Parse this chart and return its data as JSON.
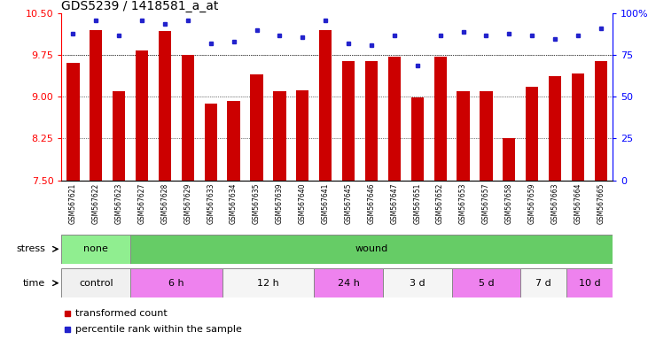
{
  "title": "GDS5239 / 1418581_a_at",
  "samples": [
    "GSM567621",
    "GSM567622",
    "GSM567623",
    "GSM567627",
    "GSM567628",
    "GSM567629",
    "GSM567633",
    "GSM567634",
    "GSM567635",
    "GSM567639",
    "GSM567640",
    "GSM567641",
    "GSM567645",
    "GSM567646",
    "GSM567647",
    "GSM567651",
    "GSM567652",
    "GSM567653",
    "GSM567657",
    "GSM567658",
    "GSM567659",
    "GSM567663",
    "GSM567664",
    "GSM567665"
  ],
  "bar_values": [
    9.62,
    10.2,
    9.1,
    9.83,
    10.18,
    9.75,
    8.88,
    8.93,
    9.4,
    9.1,
    9.12,
    10.2,
    9.65,
    9.65,
    9.73,
    8.99,
    9.73,
    9.1,
    9.1,
    8.25,
    9.18,
    9.37,
    9.42,
    9.65
  ],
  "dot_values": [
    88,
    96,
    87,
    96,
    94,
    96,
    82,
    83,
    90,
    87,
    86,
    96,
    82,
    81,
    87,
    69,
    87,
    89,
    87,
    88,
    87,
    85,
    87,
    91
  ],
  "ylim_left": [
    7.5,
    10.5
  ],
  "ylim_right": [
    0,
    100
  ],
  "yticks_left": [
    7.5,
    8.25,
    9.0,
    9.75,
    10.5
  ],
  "yticks_right": [
    0,
    25,
    50,
    75,
    100
  ],
  "bar_color": "#CC0000",
  "dot_color": "#2222CC",
  "stress_groups": [
    {
      "label": "none",
      "start": 0,
      "end": 3,
      "color": "#90EE90"
    },
    {
      "label": "wound",
      "start": 3,
      "end": 24,
      "color": "#66CC66"
    }
  ],
  "time_groups": [
    {
      "label": "control",
      "start": 0,
      "end": 3,
      "color": "#f0f0f0"
    },
    {
      "label": "6 h",
      "start": 3,
      "end": 7,
      "color": "#EE82EE"
    },
    {
      "label": "12 h",
      "start": 7,
      "end": 11,
      "color": "#f5f5f5"
    },
    {
      "label": "24 h",
      "start": 11,
      "end": 14,
      "color": "#EE82EE"
    },
    {
      "label": "3 d",
      "start": 14,
      "end": 17,
      "color": "#f5f5f5"
    },
    {
      "label": "5 d",
      "start": 17,
      "end": 20,
      "color": "#EE82EE"
    },
    {
      "label": "7 d",
      "start": 20,
      "end": 22,
      "color": "#f5f5f5"
    },
    {
      "label": "10 d",
      "start": 22,
      "end": 24,
      "color": "#EE82EE"
    }
  ],
  "background_color": "#ffffff",
  "plot_bg_color": "#ffffff",
  "title_fontsize": 10,
  "tick_fontsize": 7,
  "label_fontsize": 8,
  "sample_fontsize": 5.5,
  "annotation_fontsize": 8
}
